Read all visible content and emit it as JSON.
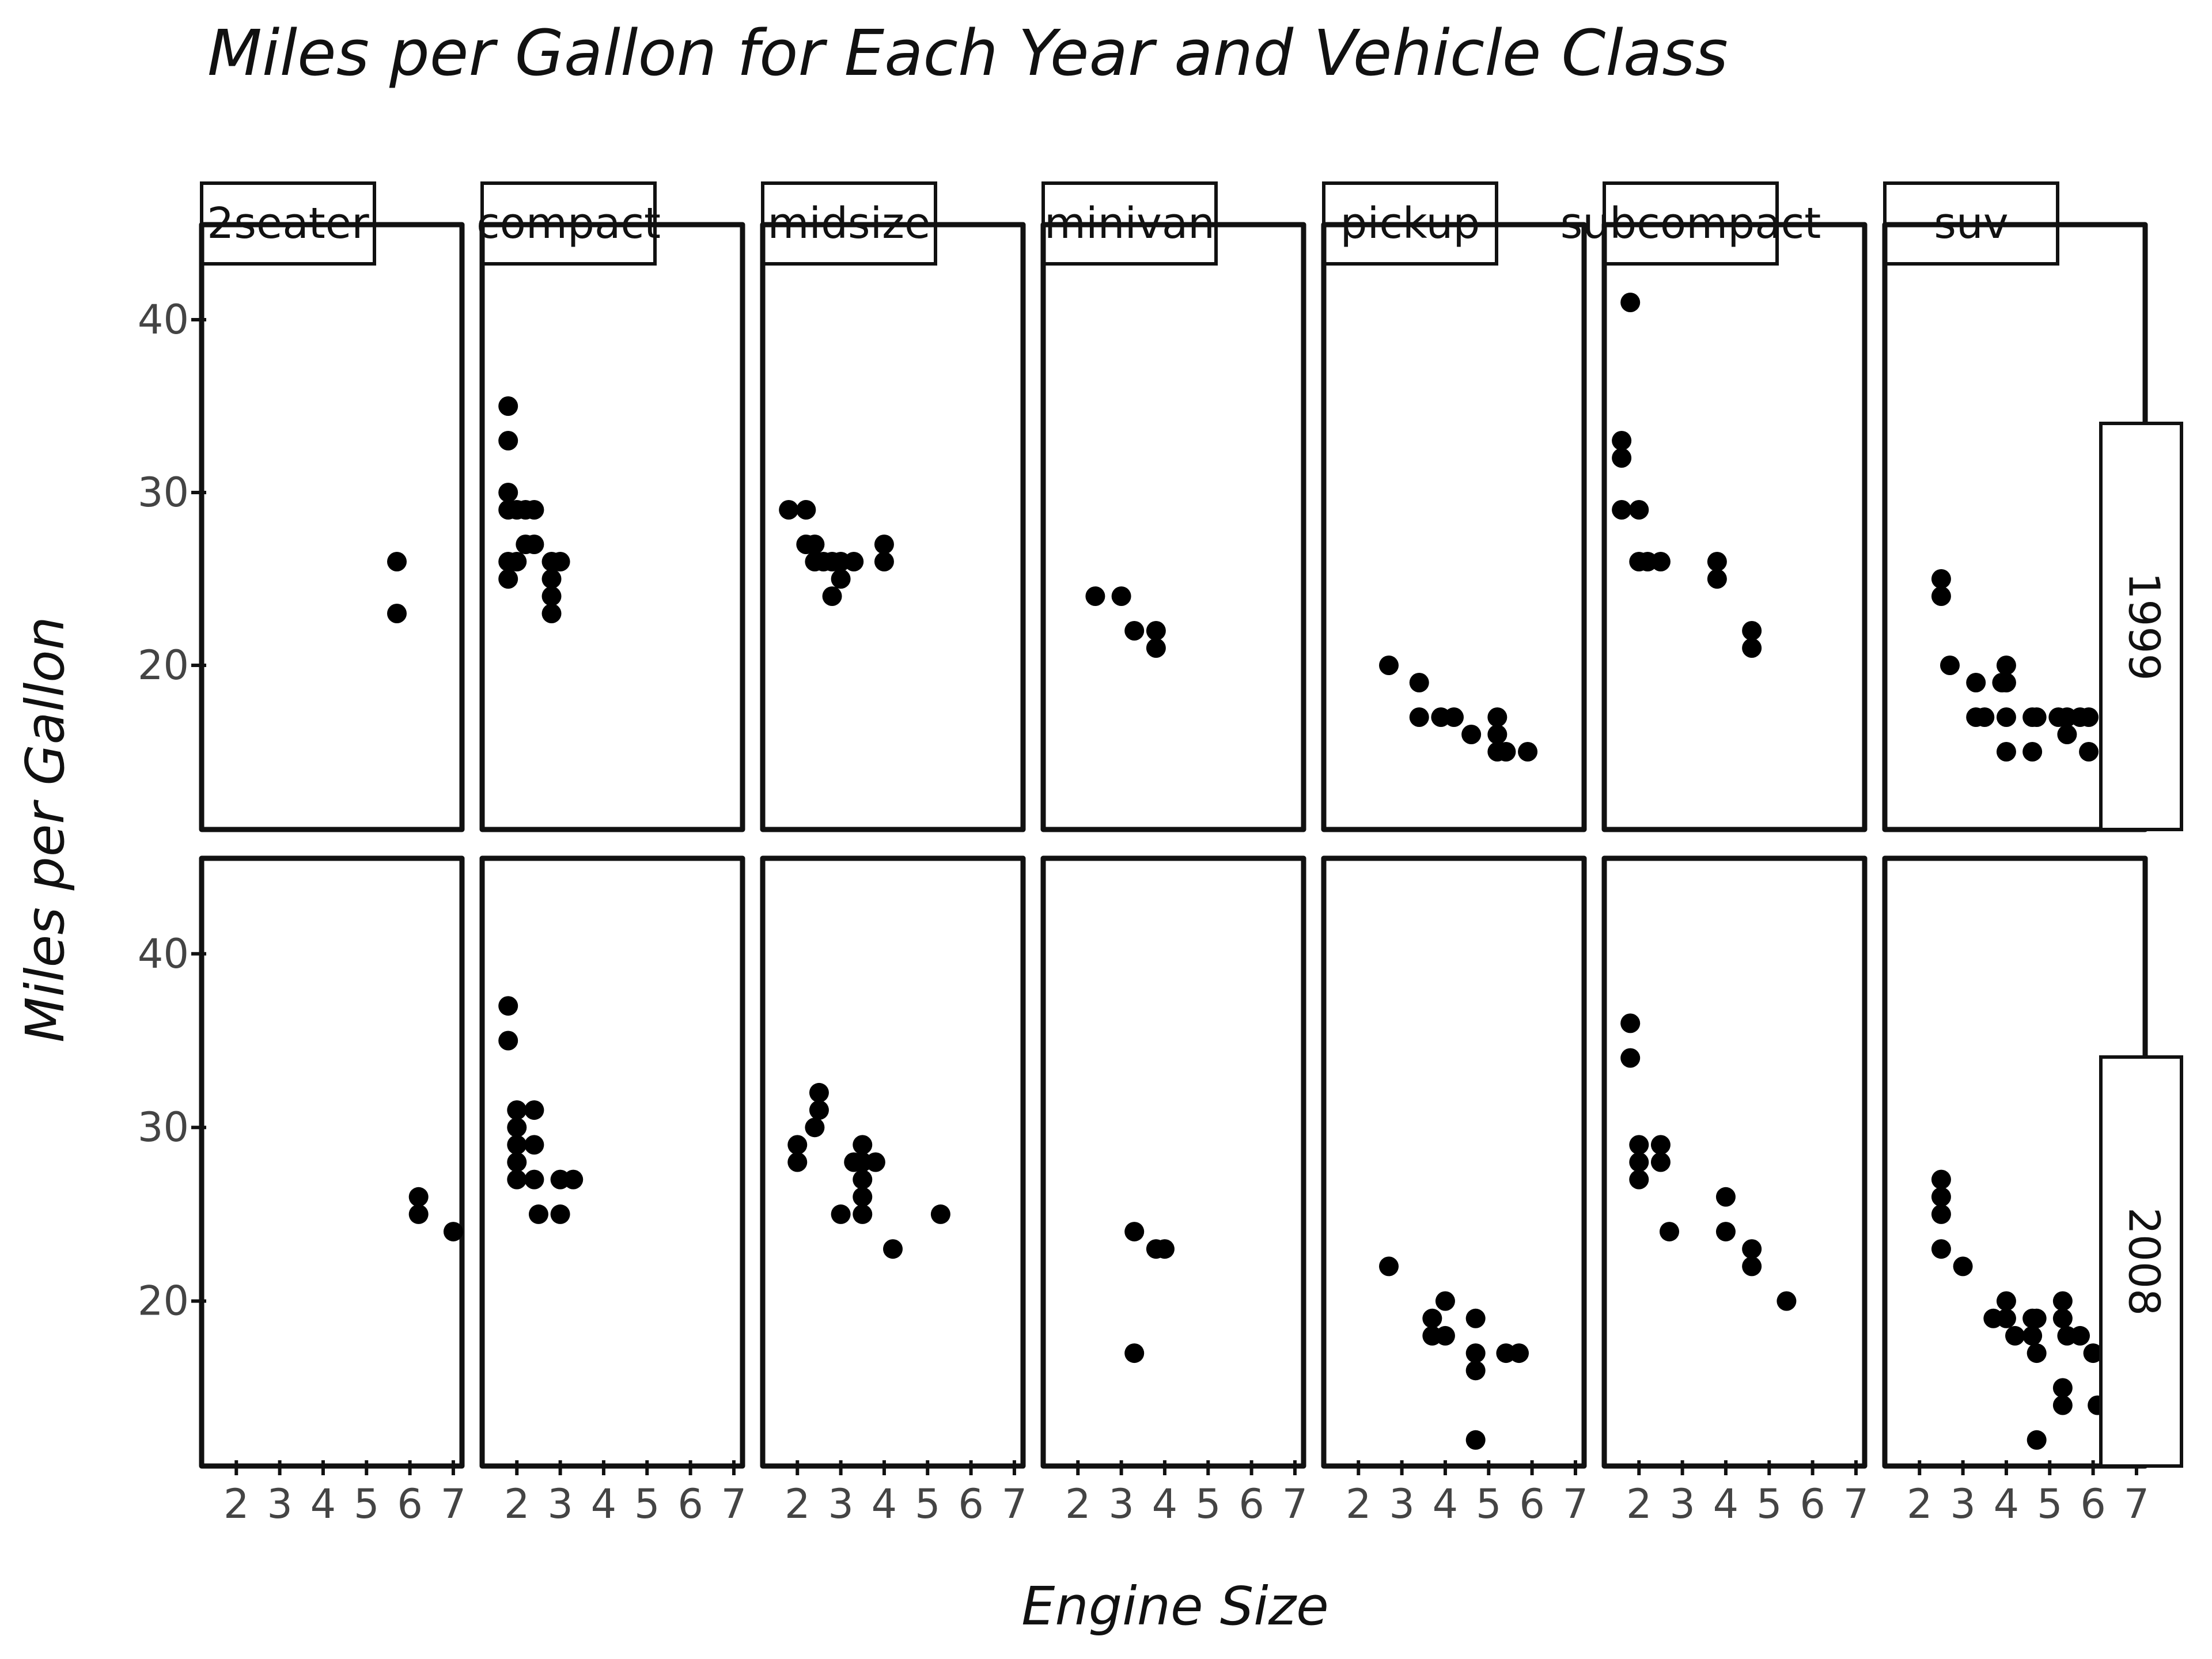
{
  "chart_data": {
    "type": "scatter",
    "title": "Miles per Gallon for Each Year and Vehicle Class",
    "xlabel": "Engine Size",
    "ylabel": "Miles per Gallon",
    "facet_columns": [
      "2seater",
      "compact",
      "midsize",
      "minivan",
      "pickup",
      "subcompact",
      "suv"
    ],
    "facet_rows": [
      "1999",
      "2008"
    ],
    "xlim": [
      1.2,
      7.2
    ],
    "ylim": [
      10.5,
      45.5
    ],
    "x_ticks": [
      2,
      3,
      4,
      5,
      6,
      7
    ],
    "y_ticks": [
      20,
      30,
      40
    ],
    "grid": false,
    "panels": {
      "1999": {
        "2seater": [
          [
            5.7,
            26
          ],
          [
            5.7,
            23
          ]
        ],
        "compact": [
          [
            1.8,
            35
          ],
          [
            1.8,
            33
          ],
          [
            1.8,
            30
          ],
          [
            1.8,
            29
          ],
          [
            1.8,
            26
          ],
          [
            1.8,
            25
          ],
          [
            2.0,
            29
          ],
          [
            2.0,
            26
          ],
          [
            2.2,
            29
          ],
          [
            2.2,
            27
          ],
          [
            2.4,
            29
          ],
          [
            2.4,
            27
          ],
          [
            2.8,
            26
          ],
          [
            2.8,
            25
          ],
          [
            2.8,
            24
          ],
          [
            2.8,
            23
          ],
          [
            3.0,
            26
          ]
        ],
        "midsize": [
          [
            1.8,
            29
          ],
          [
            2.2,
            29
          ],
          [
            2.2,
            27
          ],
          [
            2.4,
            27
          ],
          [
            2.4,
            26
          ],
          [
            2.6,
            26
          ],
          [
            2.8,
            26
          ],
          [
            2.8,
            24
          ],
          [
            3.0,
            26
          ],
          [
            3.0,
            25
          ],
          [
            3.3,
            26
          ],
          [
            4.0,
            27
          ],
          [
            4.0,
            26
          ]
        ],
        "minivan": [
          [
            2.4,
            24
          ],
          [
            3.0,
            24
          ],
          [
            3.3,
            22
          ],
          [
            3.8,
            22
          ],
          [
            3.8,
            21
          ]
        ],
        "pickup": [
          [
            2.7,
            20
          ],
          [
            3.4,
            19
          ],
          [
            3.4,
            17
          ],
          [
            3.9,
            17
          ],
          [
            4.2,
            17
          ],
          [
            4.6,
            16
          ],
          [
            5.2,
            17
          ],
          [
            5.2,
            16
          ],
          [
            5.2,
            15
          ],
          [
            5.4,
            15
          ],
          [
            5.9,
            15
          ]
        ],
        "subcompact": [
          [
            1.6,
            33
          ],
          [
            1.6,
            32
          ],
          [
            1.6,
            29
          ],
          [
            1.8,
            41
          ],
          [
            2.0,
            29
          ],
          [
            2.0,
            26
          ],
          [
            2.2,
            26
          ],
          [
            2.5,
            26
          ],
          [
            3.8,
            26
          ],
          [
            3.8,
            25
          ],
          [
            4.6,
            22
          ],
          [
            4.6,
            21
          ]
        ],
        "suv": [
          [
            2.5,
            25
          ],
          [
            2.5,
            24
          ],
          [
            2.7,
            20
          ],
          [
            3.3,
            19
          ],
          [
            3.3,
            17
          ],
          [
            3.5,
            17
          ],
          [
            3.9,
            19
          ],
          [
            4.0,
            20
          ],
          [
            4.0,
            19
          ],
          [
            4.0,
            17
          ],
          [
            4.0,
            15
          ],
          [
            4.6,
            17
          ],
          [
            4.6,
            15
          ],
          [
            4.7,
            17
          ],
          [
            5.2,
            17
          ],
          [
            5.4,
            16
          ],
          [
            5.4,
            17
          ],
          [
            5.7,
            17
          ],
          [
            5.9,
            17
          ],
          [
            5.9,
            15
          ],
          [
            6.5,
            15
          ]
        ]
      },
      "2008": {
        "2seater": [
          [
            6.2,
            26
          ],
          [
            6.2,
            25
          ],
          [
            7.0,
            24
          ]
        ],
        "compact": [
          [
            1.8,
            37
          ],
          [
            1.8,
            35
          ],
          [
            2.0,
            31
          ],
          [
            2.0,
            30
          ],
          [
            2.0,
            29
          ],
          [
            2.0,
            28
          ],
          [
            2.0,
            27
          ],
          [
            2.4,
            31
          ],
          [
            2.4,
            29
          ],
          [
            2.4,
            27
          ],
          [
            2.5,
            25
          ],
          [
            3.0,
            27
          ],
          [
            3.0,
            25
          ],
          [
            3.3,
            27
          ]
        ],
        "midsize": [
          [
            2.0,
            29
          ],
          [
            2.0,
            28
          ],
          [
            2.4,
            30
          ],
          [
            2.5,
            31
          ],
          [
            2.5,
            32
          ],
          [
            3.0,
            25
          ],
          [
            3.3,
            28
          ],
          [
            3.5,
            29
          ],
          [
            3.5,
            28
          ],
          [
            3.5,
            27
          ],
          [
            3.5,
            26
          ],
          [
            3.5,
            25
          ],
          [
            3.8,
            28
          ],
          [
            4.2,
            23
          ],
          [
            5.3,
            25
          ]
        ],
        "minivan": [
          [
            3.3,
            24
          ],
          [
            3.3,
            17
          ],
          [
            3.8,
            23
          ],
          [
            4.0,
            23
          ]
        ],
        "pickup": [
          [
            2.7,
            22
          ],
          [
            3.7,
            19
          ],
          [
            3.7,
            18
          ],
          [
            4.0,
            20
          ],
          [
            4.0,
            18
          ],
          [
            4.7,
            19
          ],
          [
            4.7,
            17
          ],
          [
            4.7,
            16
          ],
          [
            4.7,
            12
          ],
          [
            5.4,
            17
          ],
          [
            5.7,
            17
          ]
        ],
        "subcompact": [
          [
            1.8,
            36
          ],
          [
            1.8,
            34
          ],
          [
            2.0,
            29
          ],
          [
            2.0,
            28
          ],
          [
            2.0,
            27
          ],
          [
            2.5,
            29
          ],
          [
            2.5,
            28
          ],
          [
            2.7,
            24
          ],
          [
            4.0,
            26
          ],
          [
            4.0,
            24
          ],
          [
            4.6,
            23
          ],
          [
            4.6,
            22
          ],
          [
            5.4,
            20
          ]
        ],
        "suv": [
          [
            2.5,
            27
          ],
          [
            2.5,
            26
          ],
          [
            2.5,
            25
          ],
          [
            2.5,
            23
          ],
          [
            3.0,
            22
          ],
          [
            3.7,
            19
          ],
          [
            4.0,
            20
          ],
          [
            4.0,
            19
          ],
          [
            4.2,
            18
          ],
          [
            4.6,
            19
          ],
          [
            4.6,
            18
          ],
          [
            4.7,
            19
          ],
          [
            4.7,
            17
          ],
          [
            4.7,
            12
          ],
          [
            5.3,
            20
          ],
          [
            5.3,
            19
          ],
          [
            5.3,
            15
          ],
          [
            5.3,
            14
          ],
          [
            5.4,
            18
          ],
          [
            5.7,
            18
          ],
          [
            6.0,
            17
          ],
          [
            6.1,
            14
          ]
        ]
      }
    }
  }
}
